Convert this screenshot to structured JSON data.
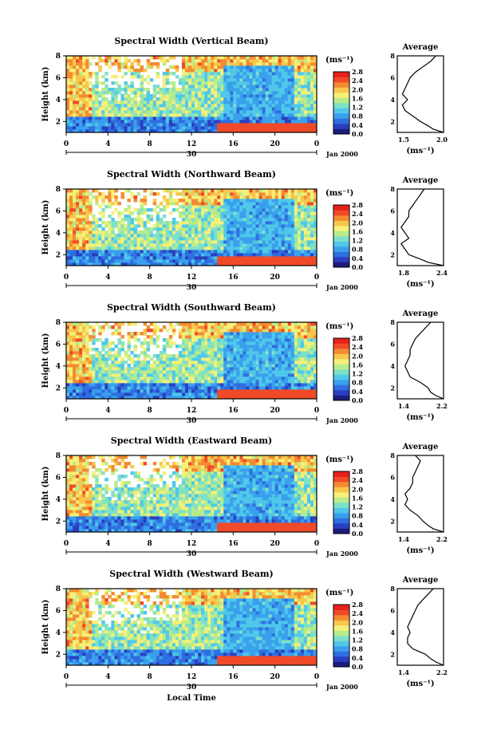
{
  "figure": {
    "bottom_xlabel": "Local Time",
    "colorbar_unit": "(ms⁻¹)",
    "colorbar_ticks": [
      "0.0",
      "0.4",
      "0.8",
      "1.2",
      "1.6",
      "2.0",
      "2.4",
      "2.8"
    ],
    "colorscale": [
      "#1c1c7a",
      "#2a3fbf",
      "#2f6ee0",
      "#3aa0ec",
      "#4fc8ea",
      "#7fe0c8",
      "#b8ec8a",
      "#f4f07a",
      "#f7c64a",
      "#f48a32",
      "#f04a28",
      "#e8201c"
    ],
    "time_ticks": [
      "0",
      "4",
      "8",
      "12",
      "16",
      "20",
      "0"
    ],
    "date_day": "30",
    "date_label": "Jan 2000",
    "height_label": "Height (km)",
    "height_ticks": [
      "2",
      "4",
      "6",
      "8"
    ],
    "avg_title": "Average",
    "avg_unit": "(ms⁻¹)"
  },
  "chart_data": [
    {
      "type": "heatmap",
      "title": "Spectral Width (Vertical Beam)",
      "xlabel": "Local Time",
      "ylabel": "Height (km)",
      "xlim": [
        0,
        24
      ],
      "ylim": [
        1,
        8
      ],
      "zlim": [
        0,
        2.8
      ],
      "average_profile": {
        "type": "line",
        "title": "Average",
        "xlabel": "(ms⁻¹)",
        "ylabel": "Height (km)",
        "xlim": [
          1.1,
          2.0
        ],
        "xticks": [
          "1.5",
          "2.0"
        ],
        "height": [
          1.0,
          1.3,
          1.6,
          2.0,
          2.5,
          3.0,
          3.5,
          4.0,
          4.5,
          5.0,
          5.5,
          6.0,
          6.5,
          7.0,
          7.5,
          8.0
        ],
        "width": [
          2.0,
          1.8,
          1.7,
          1.55,
          1.4,
          1.25,
          1.2,
          1.3,
          1.2,
          1.25,
          1.3,
          1.35,
          1.45,
          1.6,
          1.75,
          1.85
        ]
      }
    },
    {
      "type": "heatmap",
      "title": "Spectral Width (Northward Beam)",
      "xlabel": "Local Time",
      "ylabel": "Height (km)",
      "xlim": [
        0,
        24
      ],
      "ylim": [
        1,
        8
      ],
      "zlim": [
        0,
        2.8
      ],
      "average_profile": {
        "type": "line",
        "title": "Average",
        "xlabel": "(ms⁻¹)",
        "ylabel": "Height (km)",
        "xlim": [
          1.8,
          2.4
        ],
        "xticks": [
          "1.8",
          "2.4"
        ],
        "height": [
          1.0,
          1.3,
          1.6,
          2.0,
          2.5,
          3.0,
          3.5,
          4.0,
          4.5,
          5.0,
          5.5,
          6.0,
          6.5,
          7.0,
          7.5,
          8.0
        ],
        "width": [
          2.4,
          2.2,
          2.1,
          1.95,
          1.9,
          1.85,
          1.95,
          1.9,
          1.85,
          1.9,
          1.95,
          1.95,
          2.0,
          2.05,
          2.1,
          2.15
        ]
      }
    },
    {
      "type": "heatmap",
      "title": "Spectral Width (Southward Beam)",
      "xlabel": "Local Time",
      "ylabel": "Height (km)",
      "xlim": [
        0,
        24
      ],
      "ylim": [
        1,
        8
      ],
      "zlim": [
        0,
        2.8
      ],
      "average_profile": {
        "type": "line",
        "title": "Average",
        "xlabel": "(ms⁻¹)",
        "ylabel": "Height (km)",
        "xlim": [
          1.3,
          2.2
        ],
        "xticks": [
          "1.4",
          "2.2"
        ],
        "height": [
          1.0,
          1.3,
          1.6,
          2.0,
          2.5,
          3.0,
          3.5,
          4.0,
          4.5,
          5.0,
          5.5,
          6.0,
          6.5,
          7.0,
          7.5,
          8.0
        ],
        "width": [
          2.2,
          2.05,
          1.95,
          1.9,
          1.75,
          1.55,
          1.5,
          1.45,
          1.5,
          1.55,
          1.55,
          1.6,
          1.65,
          1.75,
          1.85,
          1.95
        ]
      }
    },
    {
      "type": "heatmap",
      "title": "Spectral Width (Eastward Beam)",
      "xlabel": "Local Time",
      "ylabel": "Height (km)",
      "xlim": [
        0,
        24
      ],
      "ylim": [
        1,
        8
      ],
      "zlim": [
        0,
        2.8
      ],
      "average_profile": {
        "type": "line",
        "title": "Average",
        "xlabel": "(ms⁻¹)",
        "ylabel": "Height (km)",
        "xlim": [
          1.3,
          2.2
        ],
        "xticks": [
          "1.4",
          "2.2"
        ],
        "height": [
          1.0,
          1.3,
          1.6,
          2.0,
          2.5,
          3.0,
          3.5,
          4.0,
          4.5,
          5.0,
          5.5,
          6.0,
          6.5,
          7.0,
          7.5,
          8.0
        ],
        "width": [
          2.2,
          2.0,
          1.9,
          1.8,
          1.7,
          1.55,
          1.45,
          1.5,
          1.45,
          1.55,
          1.6,
          1.6,
          1.65,
          1.7,
          1.75,
          1.65
        ]
      }
    },
    {
      "type": "heatmap",
      "title": "Spectral Width (Westward Beam)",
      "xlabel": "Local Time",
      "ylabel": "Height (km)",
      "xlim": [
        0,
        24
      ],
      "ylim": [
        1,
        8
      ],
      "zlim": [
        0,
        2.8
      ],
      "average_profile": {
        "type": "line",
        "title": "Average",
        "xlabel": "(ms⁻¹)",
        "ylabel": "Height (km)",
        "xlim": [
          1.3,
          2.2
        ],
        "xticks": [
          "1.4",
          "2.2"
        ],
        "height": [
          1.0,
          1.3,
          1.6,
          2.0,
          2.5,
          3.0,
          3.5,
          4.0,
          4.5,
          5.0,
          5.5,
          6.0,
          6.5,
          7.0,
          7.5,
          8.0
        ],
        "width": [
          2.2,
          2.05,
          1.95,
          1.85,
          1.6,
          1.5,
          1.5,
          1.55,
          1.5,
          1.55,
          1.6,
          1.65,
          1.7,
          1.8,
          1.9,
          2.0
        ]
      }
    }
  ]
}
